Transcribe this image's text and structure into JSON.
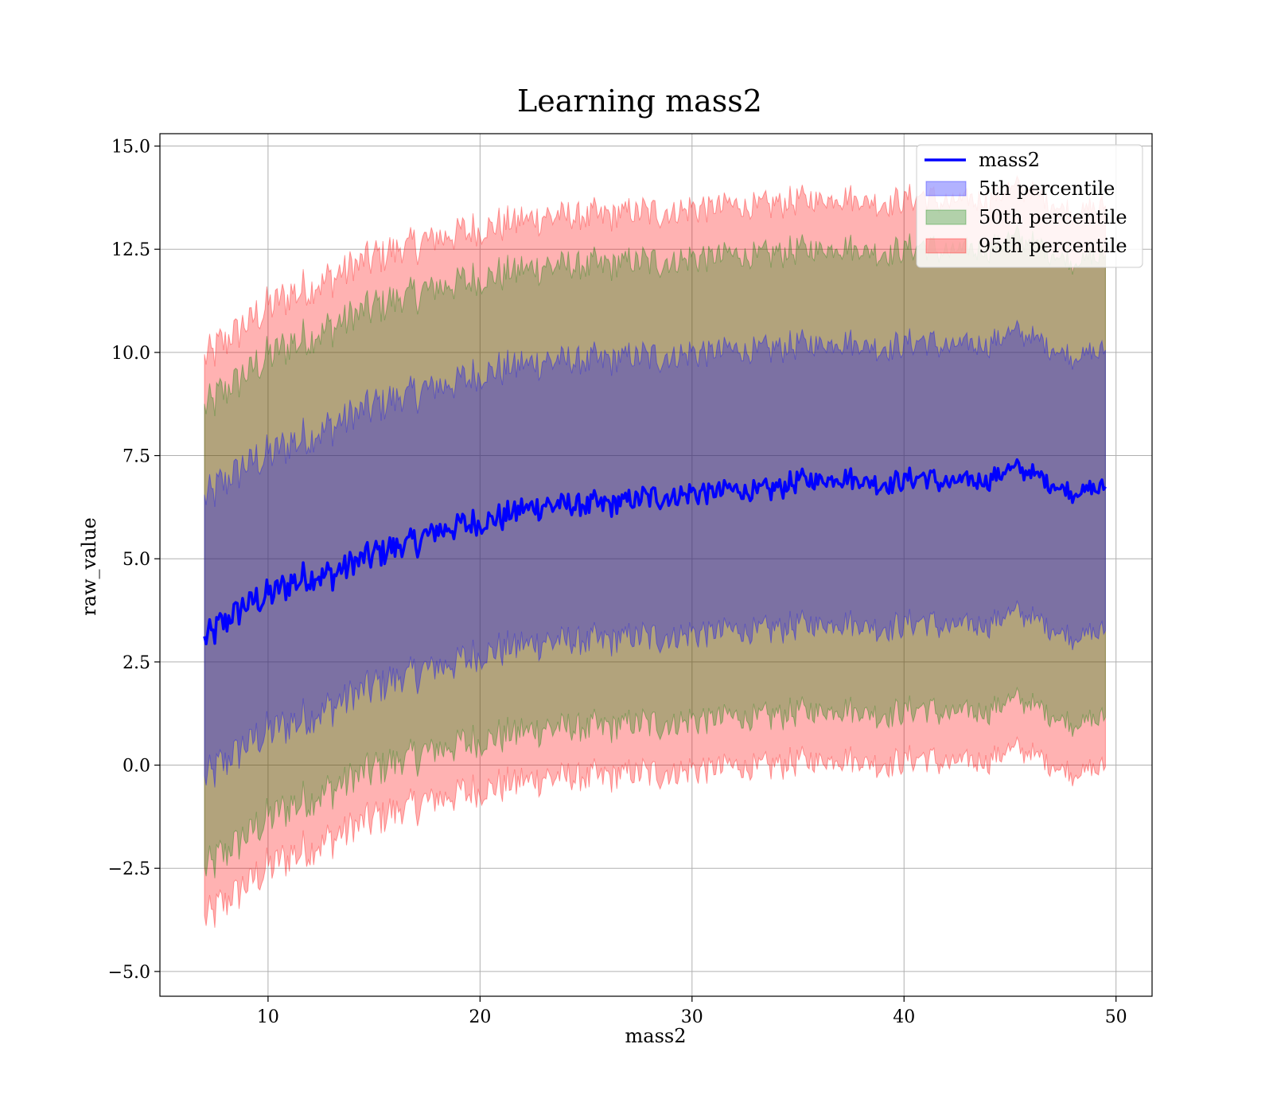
{
  "chart_data": {
    "type": "area",
    "title": "Learning mass2",
    "xlabel": "mass2",
    "ylabel": "raw_value",
    "xlim": [
      4.9,
      51.7
    ],
    "ylim": [
      -5.6,
      15.3
    ],
    "x_ticks": [
      10,
      20,
      30,
      40,
      50
    ],
    "y_ticks": [
      -5.0,
      -2.5,
      0.0,
      2.5,
      5.0,
      7.5,
      10.0,
      12.5,
      15.0
    ],
    "x_tick_labels": [
      "10",
      "20",
      "30",
      "40",
      "50"
    ],
    "y_tick_labels": [
      "−5.0",
      "−2.5",
      "0.0",
      "2.5",
      "5.0",
      "7.5",
      "10.0",
      "12.5",
      "15.0"
    ],
    "grid": true,
    "legend_position": "top-right",
    "x": [
      7,
      8,
      9,
      10,
      11,
      12,
      13,
      14,
      15,
      16,
      17,
      18,
      19,
      20,
      21,
      22,
      23,
      24,
      25,
      26,
      27,
      28,
      29,
      30,
      31,
      32,
      33,
      34,
      35,
      36,
      37,
      38,
      39,
      40,
      41,
      42,
      43,
      44,
      45,
      46,
      47,
      48,
      49,
      49.5
    ],
    "series": [
      {
        "name": "mass2",
        "kind": "line",
        "color": "#0000ff",
        "values": [
          3.0,
          3.5,
          3.9,
          4.1,
          4.4,
          4.6,
          4.6,
          4.9,
          5.1,
          5.3,
          5.4,
          5.7,
          5.8,
          5.9,
          6.0,
          6.2,
          6.3,
          6.3,
          6.3,
          6.3,
          6.4,
          6.5,
          6.5,
          6.6,
          6.6,
          6.7,
          6.6,
          6.7,
          6.9,
          6.9,
          7.0,
          6.9,
          6.8,
          6.9,
          7.0,
          6.8,
          6.9,
          6.9,
          7.2,
          7.1,
          6.8,
          6.6,
          6.7,
          6.7
        ]
      },
      {
        "name": "5th percentile",
        "kind": "band",
        "color": "#0000ff",
        "lower": [
          -0.4,
          0.1,
          0.5,
          0.8,
          1.0,
          1.2,
          1.4,
          1.7,
          1.9,
          2.1,
          2.2,
          2.4,
          2.5,
          2.7,
          2.8,
          2.9,
          3.0,
          3.0,
          3.0,
          3.0,
          3.1,
          3.1,
          3.1,
          3.2,
          3.2,
          3.3,
          3.2,
          3.3,
          3.4,
          3.4,
          3.5,
          3.4,
          3.3,
          3.4,
          3.5,
          3.3,
          3.4,
          3.4,
          3.7,
          3.6,
          3.3,
          3.1,
          3.2,
          3.2
        ],
        "upper": [
          6.4,
          6.9,
          7.3,
          7.5,
          7.8,
          8.0,
          8.2,
          8.5,
          8.7,
          8.9,
          9.0,
          9.2,
          9.3,
          9.5,
          9.6,
          9.7,
          9.8,
          9.8,
          9.8,
          9.8,
          9.9,
          9.9,
          9.9,
          10.0,
          10.0,
          10.1,
          10.0,
          10.1,
          10.2,
          10.2,
          10.3,
          10.2,
          10.1,
          10.2,
          10.3,
          10.1,
          10.2,
          10.2,
          10.5,
          10.4,
          10.1,
          9.9,
          10.0,
          10.0
        ]
      },
      {
        "name": "50th percentile",
        "kind": "band",
        "color": "#008000",
        "lower": [
          -2.6,
          -2.1,
          -1.7,
          -1.3,
          -1.0,
          -0.8,
          -0.6,
          -0.3,
          -0.1,
          0.1,
          0.2,
          0.4,
          0.5,
          0.6,
          0.7,
          0.8,
          0.9,
          0.9,
          0.9,
          0.9,
          1.0,
          1.0,
          1.0,
          1.1,
          1.1,
          1.2,
          1.1,
          1.2,
          1.3,
          1.3,
          1.4,
          1.3,
          1.2,
          1.3,
          1.4,
          1.2,
          1.3,
          1.3,
          1.6,
          1.5,
          1.2,
          1.0,
          1.1,
          1.1
        ],
        "upper": [
          8.6,
          9.1,
          9.5,
          9.9,
          10.2,
          10.4,
          10.6,
          10.9,
          11.1,
          11.3,
          11.4,
          11.6,
          11.7,
          11.8,
          11.9,
          12.0,
          12.1,
          12.1,
          12.1,
          12.1,
          12.2,
          12.2,
          12.2,
          12.3,
          12.3,
          12.4,
          12.3,
          12.4,
          12.5,
          12.5,
          12.6,
          12.5,
          12.4,
          12.5,
          12.6,
          12.4,
          12.5,
          12.5,
          12.8,
          12.7,
          12.4,
          12.2,
          12.3,
          12.3
        ]
      },
      {
        "name": "95th percentile",
        "kind": "band",
        "color": "#ff0000",
        "lower": [
          -3.8,
          -3.3,
          -2.9,
          -2.5,
          -2.2,
          -2.0,
          -1.8,
          -1.5,
          -1.3,
          -1.1,
          -1.0,
          -0.8,
          -0.7,
          -0.6,
          -0.5,
          -0.4,
          -0.3,
          -0.3,
          -0.3,
          -0.3,
          -0.2,
          -0.2,
          -0.2,
          -0.1,
          -0.1,
          0.0,
          -0.1,
          0.0,
          0.1,
          0.1,
          0.2,
          0.1,
          0.0,
          0.1,
          0.2,
          0.0,
          0.1,
          0.1,
          0.4,
          0.3,
          0.0,
          -0.2,
          -0.1,
          -0.1
        ],
        "upper": [
          9.8,
          10.3,
          10.7,
          11.1,
          11.4,
          11.6,
          11.8,
          12.1,
          12.3,
          12.5,
          12.6,
          12.8,
          12.9,
          13.0,
          13.1,
          13.2,
          13.3,
          13.3,
          13.3,
          13.3,
          13.4,
          13.4,
          13.4,
          13.5,
          13.5,
          13.6,
          13.5,
          13.6,
          13.7,
          13.7,
          13.8,
          13.7,
          13.6,
          13.7,
          13.8,
          13.6,
          13.7,
          13.7,
          14.0,
          13.9,
          13.6,
          13.4,
          13.5,
          13.5
        ]
      }
    ]
  }
}
